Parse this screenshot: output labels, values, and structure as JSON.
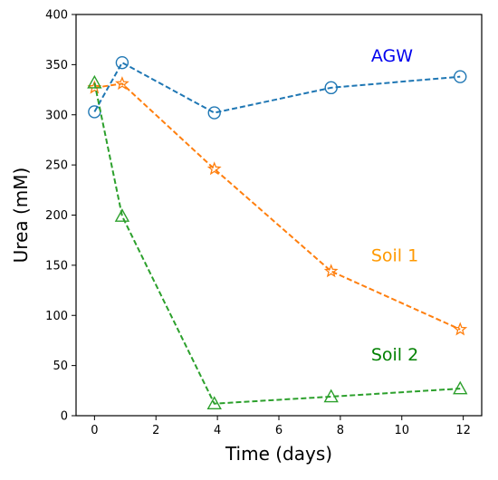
{
  "chart_data": {
    "type": "line",
    "title": "",
    "xlabel": "Time (days)",
    "ylabel": "Urea (mM)",
    "xlim": [
      -0.6,
      12.6
    ],
    "ylim": [
      0,
      400
    ],
    "xticks": [
      0,
      2,
      4,
      6,
      8,
      10,
      12
    ],
    "yticks": [
      0,
      50,
      100,
      150,
      200,
      250,
      300,
      350,
      400
    ],
    "grid": false,
    "legend": "none (series labelled directly on the plot)",
    "series": [
      {
        "name": "AGW",
        "color": "#1f77b4",
        "marker": "circle",
        "linestyle": "dashed",
        "x": [
          0,
          0.9,
          3.9,
          7.7,
          11.9
        ],
        "y": [
          303,
          352,
          302,
          327,
          338
        ]
      },
      {
        "name": "Soil 1",
        "color": "#ff7f0e",
        "marker": "star",
        "linestyle": "dashed",
        "x": [
          0,
          0.9,
          3.9,
          7.7,
          11.9
        ],
        "y": [
          327,
          331,
          246,
          144,
          86
        ]
      },
      {
        "name": "Soil 2",
        "color": "#2ca02c",
        "marker": "triangle",
        "linestyle": "dashed",
        "x": [
          0,
          0.9,
          3.9,
          7.7,
          11.9
        ],
        "y": [
          332,
          199,
          12,
          19,
          27
        ]
      }
    ],
    "annotations": [
      {
        "text": "AGW",
        "color": "#0000ee",
        "x": 9.0,
        "y": 353
      },
      {
        "text": "Soil 1",
        "color": "#ff9900",
        "x": 9.0,
        "y": 154
      },
      {
        "text": "Soil 2",
        "color": "#008000",
        "x": 9.0,
        "y": 55
      }
    ]
  }
}
